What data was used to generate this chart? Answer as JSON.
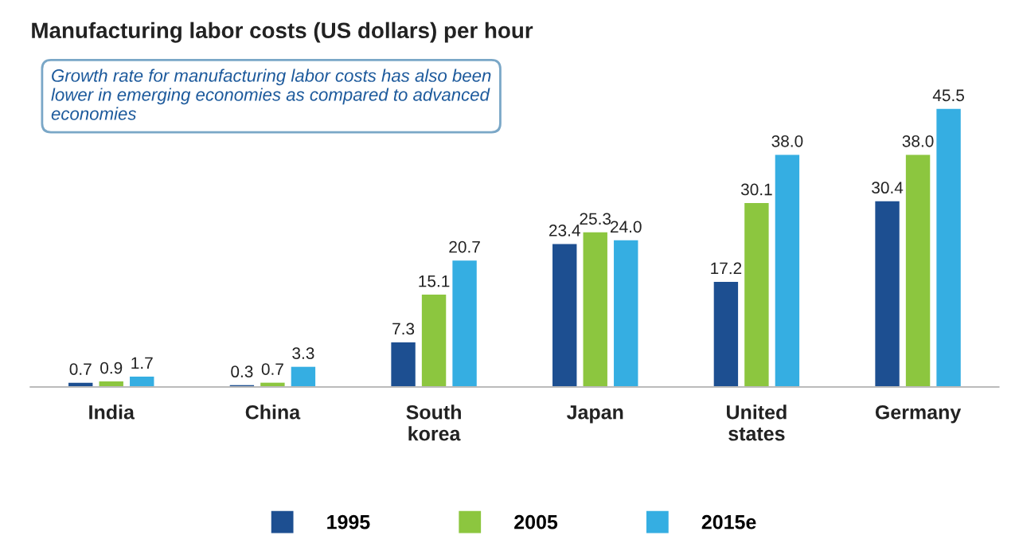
{
  "chart_data": {
    "type": "bar",
    "title": "Manufacturing labor costs (US dollars) per hour",
    "categories": [
      "India",
      "China",
      "South\nkorea",
      "Japan",
      "United\nstates",
      "Germany"
    ],
    "series": [
      {
        "name": "1995",
        "color": "#1d4f91",
        "values": [
          0.7,
          0.3,
          7.3,
          23.4,
          17.2,
          30.4
        ],
        "value_labels": [
          "0.7",
          "0.3",
          "7.3",
          "23.4",
          "17.2",
          "30.4"
        ]
      },
      {
        "name": "2005",
        "color": "#8cc63f",
        "values": [
          0.9,
          0.7,
          15.1,
          25.3,
          30.1,
          38.0
        ],
        "value_labels": [
          "0.9",
          "0.7",
          "15.1",
          "25.3",
          "30.1",
          "38.0"
        ]
      },
      {
        "name": "2015e",
        "color": "#35aee2",
        "values": [
          1.7,
          3.3,
          20.7,
          24.0,
          38.0,
          45.5
        ],
        "value_labels": [
          "1.7",
          "3.3",
          "20.7",
          "24.0",
          "38.0",
          "45.5"
        ]
      }
    ],
    "legend": "bottom",
    "grid": false,
    "annotations": [
      "Growth rate for manufacturing labor costs has also been lower in emerging economies as compared to advanced economies"
    ]
  }
}
